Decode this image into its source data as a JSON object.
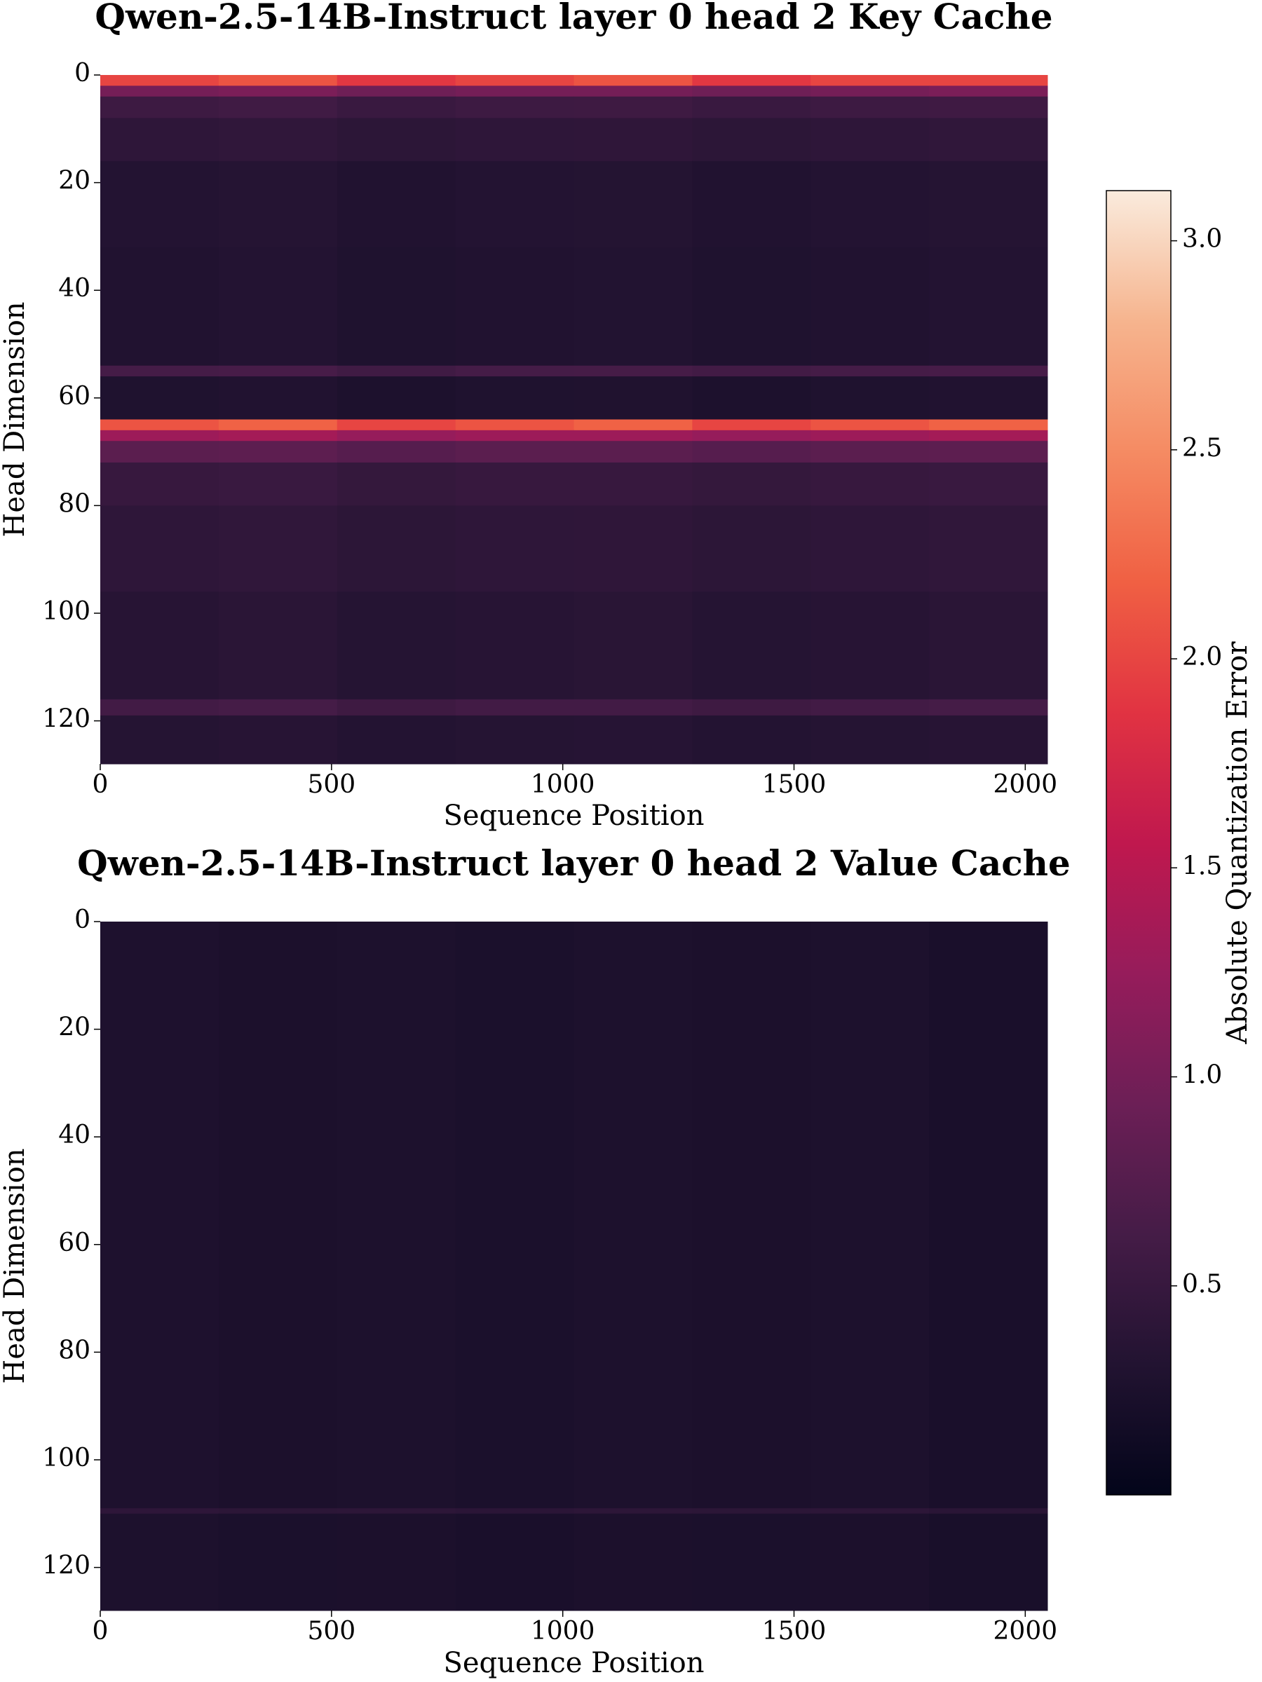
{
  "chart_data": [
    {
      "type": "heatmap",
      "title": "Qwen-2.5-14B-Instruct layer 0 head 2 Key Cache",
      "xlabel": "Sequence Position",
      "ylabel": "Head Dimension",
      "xbins": [
        0,
        256,
        512,
        768,
        1024,
        1280,
        1536,
        1792,
        2048
      ],
      "ybins": [
        0,
        2,
        4,
        8,
        16,
        32,
        54,
        56,
        64,
        66,
        68,
        72,
        80,
        96,
        116,
        119,
        128
      ],
      "z": [
        [
          2.0,
          2.1,
          1.9,
          2.0,
          2.1,
          1.9,
          2.0,
          2.0
        ],
        [
          1.0,
          1.05,
          0.95,
          1.0,
          1.0,
          0.95,
          1.0,
          1.05
        ],
        [
          0.55,
          0.58,
          0.52,
          0.55,
          0.56,
          0.52,
          0.55,
          0.57
        ],
        [
          0.42,
          0.44,
          0.4,
          0.42,
          0.43,
          0.4,
          0.42,
          0.44
        ],
        [
          0.32,
          0.34,
          0.3,
          0.32,
          0.33,
          0.3,
          0.32,
          0.34
        ],
        [
          0.3,
          0.32,
          0.28,
          0.3,
          0.31,
          0.28,
          0.3,
          0.32
        ],
        [
          0.62,
          0.64,
          0.58,
          0.62,
          0.63,
          0.6,
          0.62,
          0.64
        ],
        [
          0.28,
          0.3,
          0.26,
          0.28,
          0.29,
          0.26,
          0.28,
          0.3
        ],
        [
          2.1,
          2.2,
          2.0,
          2.1,
          2.2,
          2.0,
          2.1,
          2.2
        ],
        [
          1.3,
          1.35,
          1.25,
          1.3,
          1.3,
          1.25,
          1.3,
          1.35
        ],
        [
          0.8,
          0.82,
          0.76,
          0.8,
          0.8,
          0.76,
          0.8,
          0.82
        ],
        [
          0.5,
          0.52,
          0.47,
          0.5,
          0.5,
          0.47,
          0.5,
          0.52
        ],
        [
          0.42,
          0.44,
          0.4,
          0.42,
          0.43,
          0.4,
          0.42,
          0.44
        ],
        [
          0.36,
          0.38,
          0.34,
          0.36,
          0.37,
          0.34,
          0.36,
          0.38
        ],
        [
          0.6,
          0.62,
          0.56,
          0.6,
          0.6,
          0.56,
          0.6,
          0.62
        ],
        [
          0.34,
          0.36,
          0.32,
          0.34,
          0.35,
          0.32,
          0.34,
          0.36
        ]
      ],
      "xlim": [
        0,
        2048
      ],
      "xticks": [
        0,
        500,
        1000,
        1500,
        2000
      ],
      "ylim": [
        0,
        128
      ],
      "yticks": [
        0,
        20,
        40,
        60,
        80,
        100,
        120
      ],
      "invert_y": true,
      "colorbar": {
        "label": "Absolute Quantization Error",
        "clim": [
          0,
          3.12
        ],
        "ticks": [
          0.5,
          1.0,
          1.5,
          2.0,
          2.5,
          3.0
        ],
        "colormap": [
          "#03051a",
          "#221331",
          "#451c47",
          "#6c1f56",
          "#961c5b",
          "#c0184e",
          "#e13342",
          "#f06043",
          "#f58b63",
          "#f6b48e",
          "#faebdd"
        ]
      }
    },
    {
      "type": "heatmap",
      "title": "Qwen-2.5-14B-Instruct layer 0 head 2 Value Cache",
      "xlabel": "Sequence Position",
      "ylabel": "Head Dimension",
      "xbins": [
        0,
        256,
        512,
        768,
        1024,
        1280,
        1536,
        1792,
        2048
      ],
      "ybins": [
        0,
        109,
        110,
        128
      ],
      "z": [
        [
          0.27,
          0.25,
          0.26,
          0.24,
          0.26,
          0.25,
          0.26,
          0.23
        ],
        [
          0.42,
          0.4,
          0.41,
          0.39,
          0.41,
          0.4,
          0.41,
          0.38
        ],
        [
          0.26,
          0.24,
          0.25,
          0.23,
          0.25,
          0.24,
          0.25,
          0.22
        ]
      ],
      "xlim": [
        0,
        2048
      ],
      "xticks": [
        0,
        500,
        1000,
        1500,
        2000
      ],
      "ylim": [
        0,
        128
      ],
      "yticks": [
        0,
        20,
        40,
        60,
        80,
        100,
        120
      ],
      "invert_y": true
    }
  ]
}
